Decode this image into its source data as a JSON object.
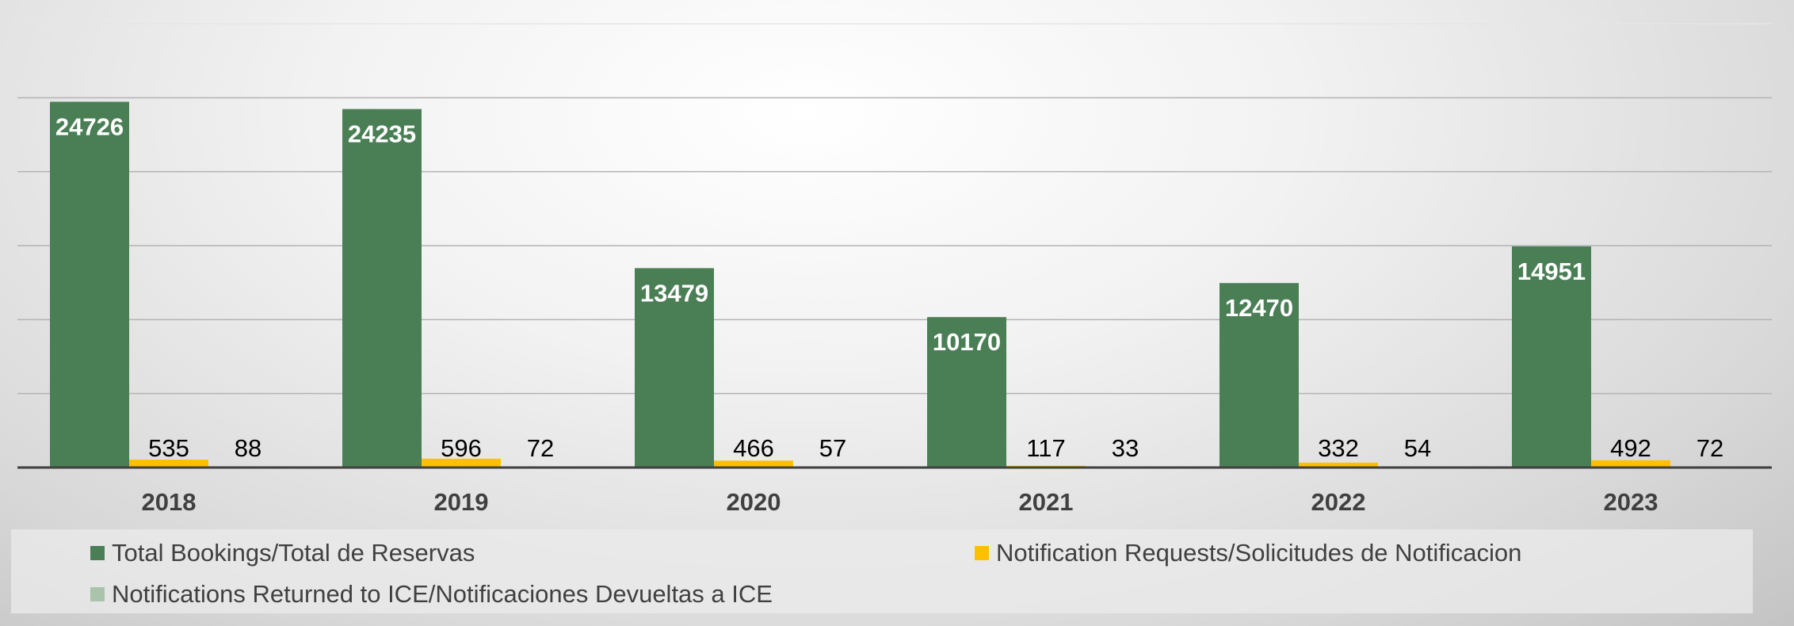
{
  "chart_data": {
    "type": "bar",
    "categories": [
      "2018",
      "2019",
      "2020",
      "2021",
      "2022",
      "2023"
    ],
    "series": [
      {
        "name": "Total Bookings/Total de Reservas",
        "color": "#4a7f55",
        "values": [
          24726,
          24235,
          13479,
          10170,
          12470,
          14951
        ]
      },
      {
        "name": "Notification Requests/Solicitudes de Notificacion",
        "color": "#ffc000",
        "values": [
          535,
          596,
          466,
          117,
          332,
          492
        ]
      },
      {
        "name": "Notifications Returned to ICE/Notificaciones Devueltas a ICE",
        "color": "#a9c4ab",
        "values": [
          88,
          72,
          57,
          33,
          54,
          72
        ]
      }
    ],
    "ylim": [
      0,
      30000
    ],
    "grid": true,
    "legend_position": "bottom",
    "data_labels": true
  }
}
